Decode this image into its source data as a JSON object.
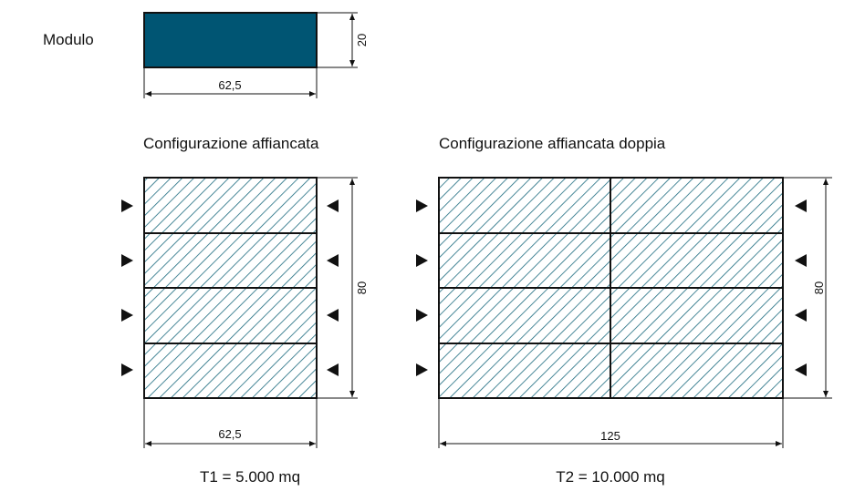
{
  "module": {
    "label": "Modulo",
    "width_label": "62,5",
    "height_label": "20"
  },
  "config_single": {
    "title": "Configurazione affiancata",
    "width_label": "62,5",
    "height_label": "80",
    "total_label": "T1 = 5.000 mq"
  },
  "config_double": {
    "title": "Configurazione affiancata doppia",
    "width_label": "125",
    "height_label": "80",
    "total_label": "T2 = 10.000 mq"
  },
  "colors": {
    "module_fill": "#005573",
    "hatch": "#1a6a7e",
    "line": "#111111"
  }
}
